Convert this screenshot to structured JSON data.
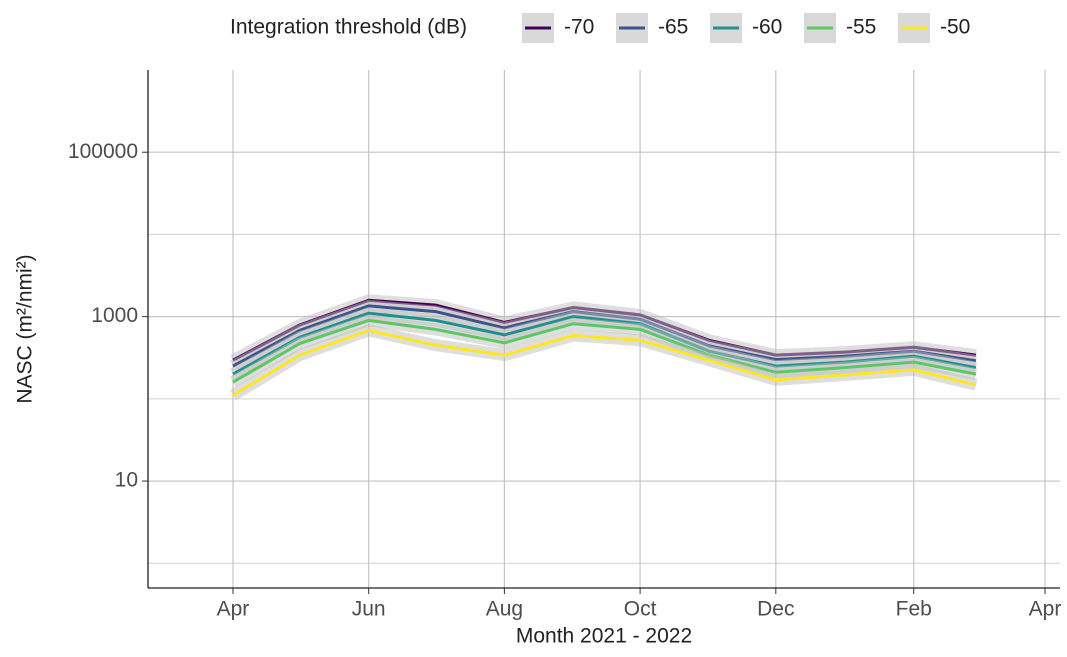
{
  "chart_data": {
    "type": "line",
    "x_label": "Month 2021 - 2022",
    "y_label": "NASC (m²/nmi²)",
    "legend_title": "Integration threshold (dB)",
    "legend_position": "top",
    "log_y": true,
    "grid": true,
    "x": [
      "2021-04",
      "2021-05",
      "2021-06",
      "2021-07",
      "2021-08",
      "2021-09",
      "2021-10",
      "2021-11",
      "2021-12",
      "2022-01",
      "2022-02",
      "2022-03"
    ],
    "xlim": [
      "2021-03",
      "2022-04"
    ],
    "xticks": [
      {
        "value": "2021-04",
        "label": "Apr"
      },
      {
        "value": "2021-06",
        "label": "Jun"
      },
      {
        "value": "2021-08",
        "label": "Aug"
      },
      {
        "value": "2021-10",
        "label": "Oct"
      },
      {
        "value": "2021-12",
        "label": "Dec"
      },
      {
        "value": "2022-02",
        "label": "Feb"
      },
      {
        "value": "2022-04",
        "label": "Apr"
      }
    ],
    "ylim": [
      0.5,
      1000000
    ],
    "yticks": [
      10,
      1000,
      100000
    ],
    "minor_yticks": [
      1,
      100,
      10000
    ],
    "series": [
      {
        "name": "-70",
        "color": "#440154",
        "values": [
          295,
          790,
          1580,
          1380,
          850,
          1290,
          1050,
          515,
          340,
          370,
          425,
          340
        ]
      },
      {
        "name": "-65",
        "color": "#3b528b",
        "values": [
          250,
          680,
          1350,
          1150,
          730,
          1150,
          930,
          440,
          300,
          330,
          380,
          290
        ]
      },
      {
        "name": "-60",
        "color": "#21908c",
        "values": [
          200,
          560,
          1100,
          900,
          600,
          1000,
          820,
          380,
          250,
          280,
          330,
          240
        ]
      },
      {
        "name": "-55",
        "color": "#5dc863",
        "values": [
          160,
          470,
          900,
          700,
          480,
          820,
          700,
          340,
          210,
          240,
          280,
          200
        ]
      },
      {
        "name": "-50",
        "color": "#fde725",
        "values": [
          110,
          340,
          680,
          450,
          340,
          590,
          515,
          295,
          170,
          195,
          225,
          148
        ]
      }
    ]
  }
}
